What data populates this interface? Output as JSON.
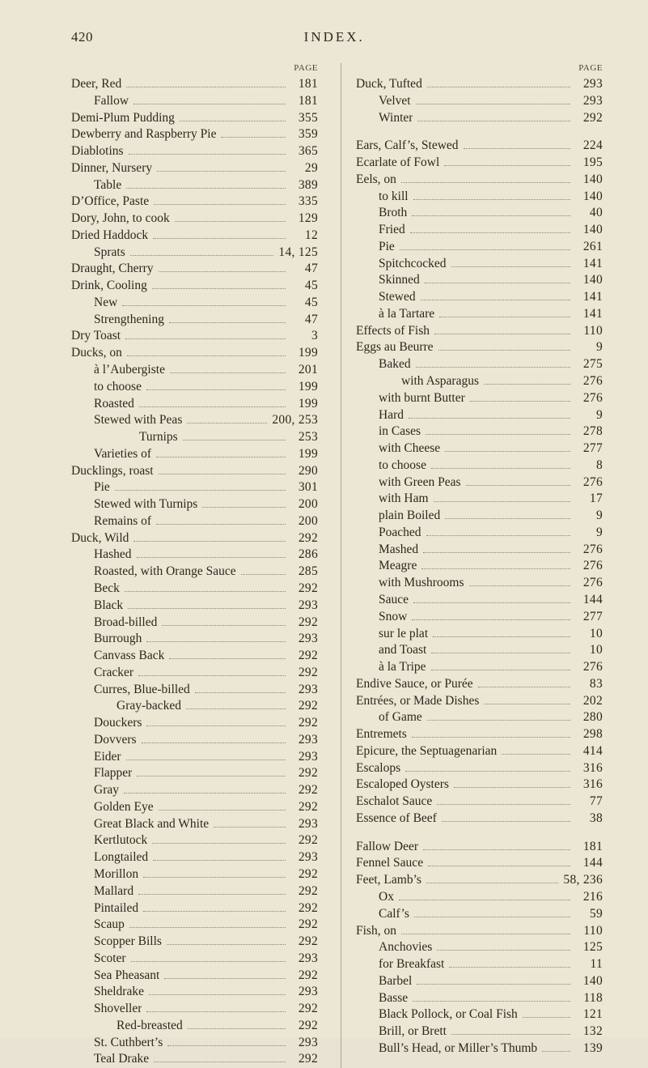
{
  "pageNumber": "420",
  "headerTitle": "INDEX.",
  "columnHead": "PAGE",
  "left": [
    {
      "t": "Deer, Red",
      "p": "181",
      "i": 0
    },
    {
      "t": "Fallow",
      "p": "181",
      "i": 1
    },
    {
      "t": "Demi-Plum Pudding",
      "p": "355",
      "i": 0
    },
    {
      "t": "Dewberry and Raspberry Pie",
      "p": "359",
      "i": 0
    },
    {
      "t": "Diablotins",
      "p": "365",
      "i": 0
    },
    {
      "t": "Dinner, Nursery",
      "p": "29",
      "i": 0
    },
    {
      "t": "Table",
      "p": "389",
      "i": 1
    },
    {
      "t": "D’Office, Paste",
      "p": "335",
      "i": 0
    },
    {
      "t": "Dory, John, to cook",
      "p": "129",
      "i": 0
    },
    {
      "t": "Dried Haddock",
      "p": "12",
      "i": 0
    },
    {
      "t": "Sprats",
      "p": "14, 125",
      "i": 1
    },
    {
      "t": "Draught, Cherry",
      "p": "47",
      "i": 0
    },
    {
      "t": "Drink, Cooling",
      "p": "45",
      "i": 0
    },
    {
      "t": "New",
      "p": "45",
      "i": 1
    },
    {
      "t": "Strengthening",
      "p": "47",
      "i": 1
    },
    {
      "t": "Dry Toast",
      "p": "3",
      "i": 0
    },
    {
      "t": "Ducks, on",
      "p": "199",
      "i": 0
    },
    {
      "t": "à l’Aubergiste",
      "p": "201",
      "i": 1
    },
    {
      "t": "to choose",
      "p": "199",
      "i": 1
    },
    {
      "t": "Roasted",
      "p": "199",
      "i": 1
    },
    {
      "t": "Stewed with Peas",
      "p": "200, 253",
      "i": 1
    },
    {
      "t": "Turnips",
      "p": "253",
      "i": 3
    },
    {
      "t": "Varieties of",
      "p": "199",
      "i": 1
    },
    {
      "t": "Ducklings, roast",
      "p": "290",
      "i": 0
    },
    {
      "t": "Pie",
      "p": "301",
      "i": 1
    },
    {
      "t": "Stewed with Turnips",
      "p": "200",
      "i": 1
    },
    {
      "t": "Remains of",
      "p": "200",
      "i": 1
    },
    {
      "t": "Duck, Wild",
      "p": "292",
      "i": 0
    },
    {
      "t": "Hashed",
      "p": "286",
      "i": 1
    },
    {
      "t": "Roasted, with Orange Sauce",
      "p": "285",
      "i": 1
    },
    {
      "t": "Beck",
      "p": "292",
      "i": 1
    },
    {
      "t": "Black",
      "p": "293",
      "i": 1
    },
    {
      "t": "Broad-billed",
      "p": "292",
      "i": 1
    },
    {
      "t": "Burrough",
      "p": "293",
      "i": 1
    },
    {
      "t": "Canvass Back",
      "p": "292",
      "i": 1
    },
    {
      "t": "Cracker",
      "p": "292",
      "i": 1
    },
    {
      "t": "Curres, Blue-billed",
      "p": "293",
      "i": 1
    },
    {
      "t": "Gray-backed",
      "p": "292",
      "i": 2
    },
    {
      "t": "Douckers",
      "p": "292",
      "i": 1
    },
    {
      "t": "Dovvers",
      "p": "293",
      "i": 1
    },
    {
      "t": "Eider",
      "p": "293",
      "i": 1
    },
    {
      "t": "Flapper",
      "p": "292",
      "i": 1
    },
    {
      "t": "Gray",
      "p": "292",
      "i": 1
    },
    {
      "t": "Golden Eye",
      "p": "292",
      "i": 1
    },
    {
      "t": "Great Black and White",
      "p": "293",
      "i": 1
    },
    {
      "t": "Kertlutock",
      "p": "292",
      "i": 1
    },
    {
      "t": "Longtailed",
      "p": "293",
      "i": 1
    },
    {
      "t": "Morillon",
      "p": "292",
      "i": 1
    },
    {
      "t": "Mallard",
      "p": "292",
      "i": 1
    },
    {
      "t": "Pintailed",
      "p": "292",
      "i": 1
    },
    {
      "t": "Scaup",
      "p": "292",
      "i": 1
    },
    {
      "t": "Scopper Bills",
      "p": "292",
      "i": 1
    },
    {
      "t": "Scoter",
      "p": "293",
      "i": 1
    },
    {
      "t": "Sea Pheasant",
      "p": "292",
      "i": 1
    },
    {
      "t": "Sheldrake",
      "p": "293",
      "i": 1
    },
    {
      "t": "Shoveller",
      "p": "292",
      "i": 1
    },
    {
      "t": "Red-breasted",
      "p": "292",
      "i": 2
    },
    {
      "t": "St. Cuthbert’s",
      "p": "293",
      "i": 1
    },
    {
      "t": "Teal Drake",
      "p": "292",
      "i": 1
    }
  ],
  "right": [
    {
      "t": "Duck, Tufted",
      "p": "293",
      "i": 0
    },
    {
      "t": "Velvet",
      "p": "293",
      "i": 1
    },
    {
      "t": "Winter",
      "p": "292",
      "i": 1
    },
    {
      "t": "",
      "p": "",
      "i": 0,
      "blank": true
    },
    {
      "t": "Ears, Calf’s, Stewed",
      "p": "224",
      "i": 0
    },
    {
      "t": "Ecarlate of Fowl",
      "p": "195",
      "i": 0
    },
    {
      "t": "Eels, on",
      "p": "140",
      "i": 0
    },
    {
      "t": "to kill",
      "p": "140",
      "i": 1
    },
    {
      "t": "Broth",
      "p": "40",
      "i": 1
    },
    {
      "t": "Fried",
      "p": "140",
      "i": 1
    },
    {
      "t": "Pie",
      "p": "261",
      "i": 1
    },
    {
      "t": "Spitchcocked",
      "p": "141",
      "i": 1
    },
    {
      "t": "Skinned",
      "p": "140",
      "i": 1
    },
    {
      "t": "Stewed",
      "p": "141",
      "i": 1
    },
    {
      "t": "à la Tartare",
      "p": "141",
      "i": 1
    },
    {
      "t": "Effects of Fish",
      "p": "110",
      "i": 0
    },
    {
      "t": "Eggs au Beurre",
      "p": "9",
      "i": 0
    },
    {
      "t": "Baked",
      "p": "275",
      "i": 1
    },
    {
      "t": "with Asparagus",
      "p": "276",
      "i": 2
    },
    {
      "t": "with burnt Butter",
      "p": "276",
      "i": 1
    },
    {
      "t": "Hard",
      "p": "9",
      "i": 1
    },
    {
      "t": "in Cases",
      "p": "278",
      "i": 1
    },
    {
      "t": "with Cheese",
      "p": "277",
      "i": 1
    },
    {
      "t": "to choose",
      "p": "8",
      "i": 1
    },
    {
      "t": "with Green Peas",
      "p": "276",
      "i": 1
    },
    {
      "t": "with Ham",
      "p": "17",
      "i": 1
    },
    {
      "t": "plain Boiled",
      "p": "9",
      "i": 1
    },
    {
      "t": "Poached",
      "p": "9",
      "i": 1
    },
    {
      "t": "Mashed",
      "p": "276",
      "i": 1
    },
    {
      "t": "Meagre",
      "p": "276",
      "i": 1
    },
    {
      "t": "with Mushrooms",
      "p": "276",
      "i": 1
    },
    {
      "t": "Sauce",
      "p": "144",
      "i": 1
    },
    {
      "t": "Snow",
      "p": "277",
      "i": 1
    },
    {
      "t": "sur le plat",
      "p": "10",
      "i": 1
    },
    {
      "t": "and Toast",
      "p": "10",
      "i": 1
    },
    {
      "t": "à la Tripe",
      "p": "276",
      "i": 1
    },
    {
      "t": "Endive Sauce, or Purée",
      "p": "83",
      "i": 0
    },
    {
      "t": "Entrées, or Made Dishes",
      "p": "202",
      "i": 0
    },
    {
      "t": "of Game",
      "p": "280",
      "i": 1
    },
    {
      "t": "Entremets",
      "p": "298",
      "i": 0
    },
    {
      "t": "Epicure, the Septuagenarian",
      "p": "414",
      "i": 0
    },
    {
      "t": "Escalops",
      "p": "316",
      "i": 0
    },
    {
      "t": "Escaloped Oysters",
      "p": "316",
      "i": 0
    },
    {
      "t": "Eschalot Sauce",
      "p": "77",
      "i": 0
    },
    {
      "t": "Essence of Beef",
      "p": "38",
      "i": 0
    },
    {
      "t": "",
      "p": "",
      "i": 0,
      "blank": true
    },
    {
      "t": "Fallow Deer",
      "p": "181",
      "i": 0
    },
    {
      "t": "Fennel Sauce",
      "p": "144",
      "i": 0
    },
    {
      "t": "Feet, Lamb’s",
      "p": "58, 236",
      "i": 0
    },
    {
      "t": "Ox",
      "p": "216",
      "i": 1
    },
    {
      "t": "Calf’s",
      "p": "59",
      "i": 1
    },
    {
      "t": "Fish, on",
      "p": "110",
      "i": 0
    },
    {
      "t": "Anchovies",
      "p": "125",
      "i": 1
    },
    {
      "t": "for Breakfast",
      "p": "11",
      "i": 1
    },
    {
      "t": "Barbel",
      "p": "140",
      "i": 1
    },
    {
      "t": "Basse",
      "p": "118",
      "i": 1
    },
    {
      "t": "Black Pollock, or Coal Fish",
      "p": "121",
      "i": 1
    },
    {
      "t": "Brill, or Brett",
      "p": "132",
      "i": 1
    },
    {
      "t": "Bull’s Head, or Miller’s Thumb",
      "p": "139",
      "i": 1
    }
  ]
}
